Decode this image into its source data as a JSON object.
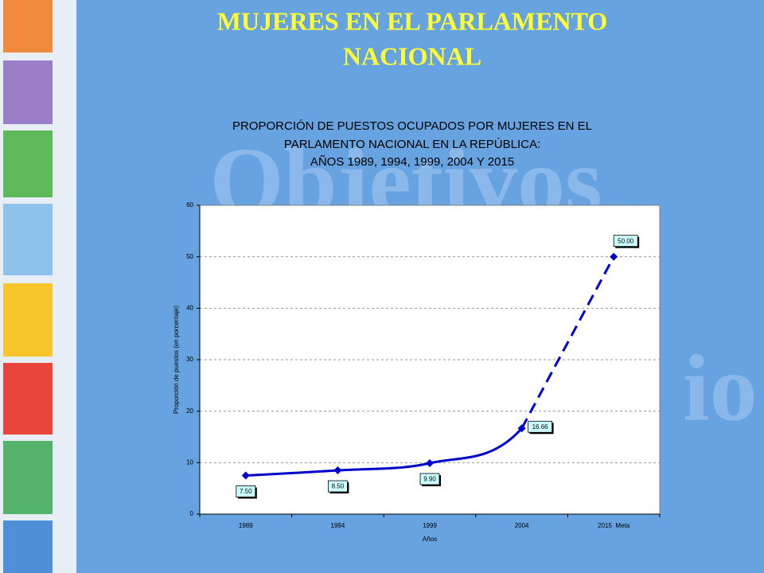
{
  "slide_title": [
    "MUJERES EN EL PARLAMENTO",
    "NACIONAL"
  ],
  "watermark": [
    "Objetivos",
    "io"
  ],
  "chart_data": {
    "type": "line",
    "title": [
      "PROPORCIÓN DE PUESTOS OCUPADOS POR MUJERES EN EL",
      "PARLAMENTO NACIONAL EN LA REPÚBLICA:",
      "AÑOS 1989, 1994, 1999, 2004 Y 2015"
    ],
    "x_label": "Años",
    "y_label": "Proporción de puestos (en porcentaje)",
    "categories": [
      "1989",
      "1994",
      "1999",
      "2004",
      "2015  Meta"
    ],
    "values": [
      7.5,
      8.5,
      9.9,
      16.66,
      50
    ],
    "value_labels": [
      "7.50",
      "8.50",
      "9.90",
      "16.66",
      "50.00"
    ],
    "color": "#0000cc",
    "ylim": [
      0,
      60
    ],
    "yticks": [
      0,
      10,
      20,
      30,
      40,
      50,
      60
    ],
    "grid": true
  }
}
